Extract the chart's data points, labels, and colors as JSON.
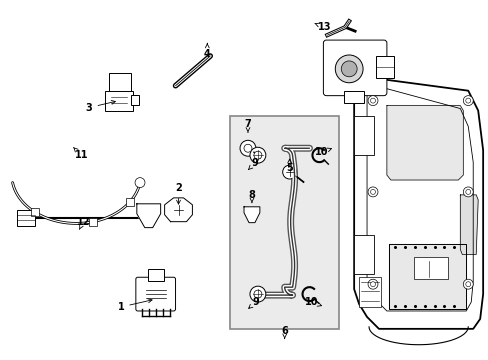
{
  "background_color": "#ffffff",
  "line_color": "#000000",
  "fig_w": 4.89,
  "fig_h": 3.6,
  "dpi": 100
}
